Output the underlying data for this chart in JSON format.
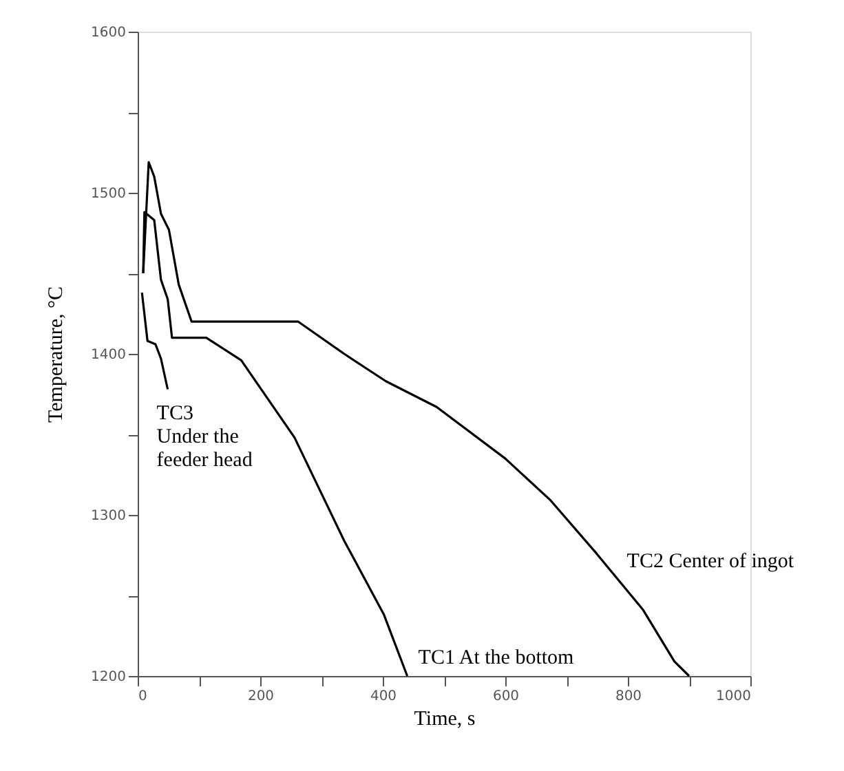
{
  "chart_data": {
    "type": "line",
    "xlabel": "Time, s",
    "ylabel": "Temperature, °C",
    "xlim": [
      0,
      1000
    ],
    "ylim": [
      1200,
      1600
    ],
    "xticks": [
      0,
      {
        "value": 100,
        "label": null
      },
      200,
      {
        "value": 300,
        "label": null
      },
      400,
      {
        "value": 500,
        "label": null
      },
      600,
      {
        "value": 700,
        "label": null
      },
      800,
      {
        "value": 900,
        "label": null
      },
      1000
    ],
    "yticks": [
      1200,
      {
        "value": 1250,
        "label": null
      },
      1300,
      {
        "value": 1350,
        "label": null
      },
      1400,
      {
        "value": 1450,
        "label": null
      },
      1500,
      {
        "value": 1550,
        "label": null
      },
      1600
    ],
    "grid": false,
    "marker": "none",
    "line_style": "solid",
    "series": [
      {
        "name": "TC1 At the bottom",
        "color": "#000000",
        "x": [
          9,
          11,
          27,
          38,
          49,
          56,
          112,
          169,
          256,
          337,
          402,
          440
        ],
        "values": [
          1450,
          1488,
          1483,
          1446,
          1434,
          1410,
          1410,
          1396,
          1348,
          1284,
          1238,
          1200
        ]
      },
      {
        "name": "TC2 Center of  ingot",
        "color": "#000000",
        "x": [
          9,
          18,
          27,
          38,
          51,
          67,
          88,
          262,
          337,
          405,
          488,
          600,
          674,
          749,
          825,
          876,
          900
        ],
        "values": [
          1450,
          1519,
          1510,
          1487,
          1477,
          1443,
          1420,
          1420,
          1400,
          1383,
          1367,
          1335,
          1309,
          1276,
          1241,
          1209,
          1200
        ]
      },
      {
        "name": "TC3\nUnder the\nfeeder head",
        "color": "#000000",
        "x": [
          7,
          16,
          29,
          38,
          49
        ],
        "values": [
          1438,
          1408,
          1406,
          1397,
          1378
        ]
      }
    ]
  }
}
